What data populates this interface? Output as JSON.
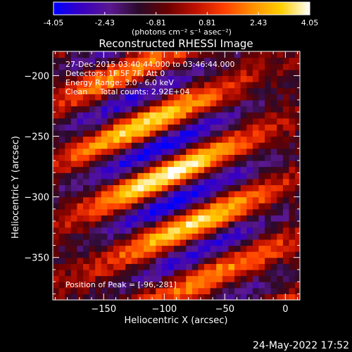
{
  "colorbar": {
    "tick_labels": [
      "-4.05",
      "-2.43",
      "-0.81",
      "0.81",
      "2.43",
      "4.05"
    ],
    "unit_label": "(photons cm⁻² s⁻¹ asec⁻²)",
    "colors": [
      "#0000ff",
      "#3a00c0",
      "#5a1890",
      "#2a0a2a",
      "#6a0000",
      "#c01000",
      "#ff4000",
      "#ff9000",
      "#ffd000",
      "#ffffff"
    ]
  },
  "chart_data": {
    "type": "heatmap",
    "title": "Reconstructed RHESSI Image",
    "xlabel": "Heliocentric X (arcsec)",
    "ylabel": "Heliocentric Y (arcsec)",
    "xlim": [
      -192,
      12
    ],
    "ylim": [
      -385,
      -180
    ],
    "x_ticks": [
      -150,
      -100,
      -50,
      0
    ],
    "y_ticks": [
      -200,
      -250,
      -300,
      -350
    ],
    "x_tick_labels": [
      "−150",
      "−100",
      "−50",
      "0"
    ],
    "y_tick_labels": [
      "−200",
      "−250",
      "−300",
      "−350"
    ],
    "value_range": [
      -4.05,
      4.05
    ],
    "peak": [
      -96,
      -281
    ],
    "annotations": [
      "27-Dec-2015 03:40:44.000 to 03:46:44.000",
      "Detectors: 1F 5F 7F, Att 0",
      "Energy Range: 3.0 - 6.0 keV",
      "Clean     Total counts: 2.92E+04"
    ],
    "peak_label": "Position of Peak = [-96,-281]"
  },
  "footer": {
    "timestamp": "24-May-2022 17:52"
  }
}
